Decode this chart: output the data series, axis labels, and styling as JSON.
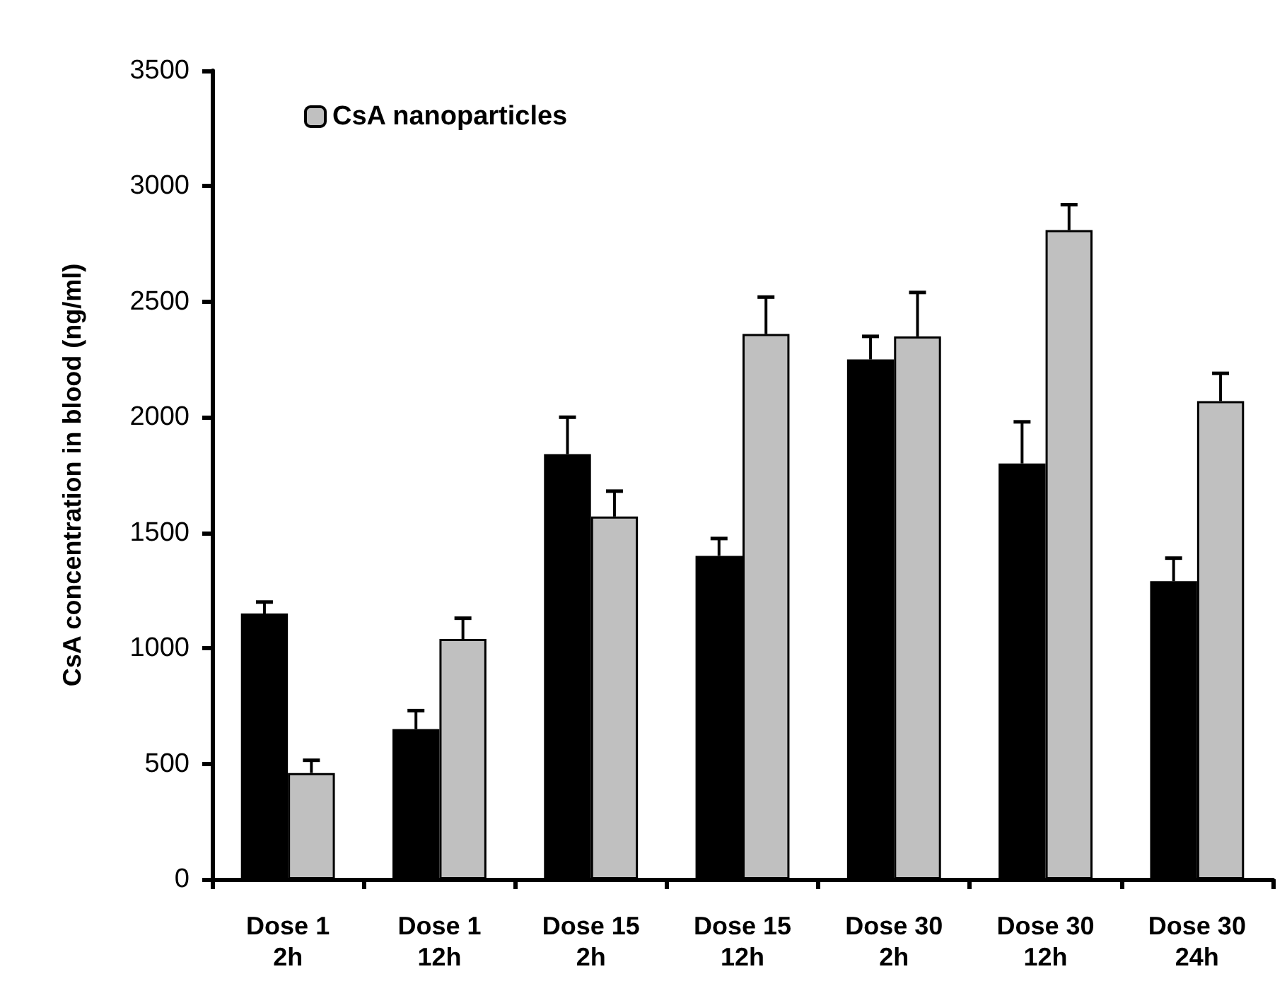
{
  "chart_data": {
    "type": "bar",
    "ylabel": "CsA concentration in blood (ng/ml)",
    "categories": [
      "Dose 1\n2h",
      "Dose 1\n12h",
      "Dose 15\n2h",
      "Dose 15\n12h",
      "Dose 30\n2h",
      "Dose 30\n12h",
      "Dose 30\n24h"
    ],
    "series": [
      {
        "color": "#000000",
        "values": [
          1150,
          650,
          1840,
          1400,
          2250,
          1800,
          1290
        ],
        "errors": [
          [
            1150,
            1200
          ],
          [
            650,
            730
          ],
          [
            1840,
            2000
          ],
          [
            1400,
            1475
          ],
          [
            2250,
            2350
          ],
          [
            1800,
            1980
          ],
          [
            1290,
            1390
          ]
        ]
      },
      {
        "name": "CsA nanoparticles",
        "color": "#c0c0c0",
        "values": [
          460,
          1040,
          1570,
          2360,
          2350,
          2810,
          2070
        ],
        "errors": [
          [
            460,
            515
          ],
          [
            1040,
            1130
          ],
          [
            1570,
            1680
          ],
          [
            2360,
            2520
          ],
          [
            2350,
            2540
          ],
          [
            2810,
            2920
          ],
          [
            2070,
            2190
          ]
        ]
      }
    ],
    "ylim": [
      0,
      3500
    ],
    "yticks": [
      0,
      500,
      1000,
      1500,
      2000,
      2500,
      3000,
      3500
    ],
    "grid": false,
    "legend": "top left"
  }
}
